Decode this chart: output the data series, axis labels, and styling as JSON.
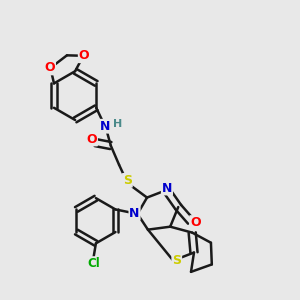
{
  "bg_color": "#e8e8e8",
  "bond_color": "#1a1a1a",
  "bond_width": 1.8,
  "atom_colors": {
    "O": "#ff0000",
    "N": "#0000cc",
    "S": "#cccc00",
    "Cl": "#00aa00",
    "C": "#1a1a1a",
    "H": "#4a8a8a"
  },
  "font_size": 9,
  "fig_size": [
    3.0,
    3.0
  ],
  "dpi": 100
}
